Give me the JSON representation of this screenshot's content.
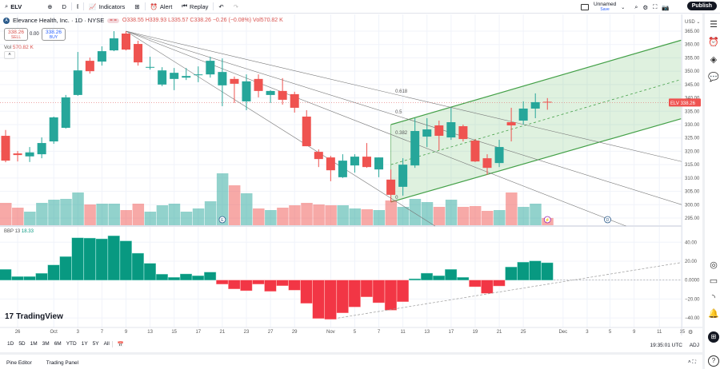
{
  "toolbar": {
    "symbol": "ELV",
    "interval": "D",
    "indicators": "Indicators",
    "alert": "Alert",
    "replay": "Replay",
    "layout_name": "Unnamed",
    "save": "Save",
    "publish": "Publish"
  },
  "legend": {
    "name": "Elevance Health, Inc. · 1D · NYSE",
    "open": "O338.55",
    "high": "H339.93",
    "low": "L335.57",
    "close": "C338.26",
    "change": "−0.26 (−0.08%)",
    "volume": "Vol570.82 K",
    "sell_price": "338.26",
    "sell": "SELL",
    "spread": "0.00",
    "buy_price": "338.26",
    "buy": "BUY",
    "vol_label": "Vol",
    "vol_value": "570.82 K"
  },
  "bbp": {
    "label": "BBP 13",
    "value": "18.33"
  },
  "brand": "TradingView",
  "price_axis": {
    "currency": "USD",
    "last_symbol": "ELV",
    "last_price": "338.26",
    "labels": [
      "365.00",
      "360.00",
      "355.00",
      "350.00",
      "345.00",
      "340.00",
      "335.00",
      "330.00",
      "325.00",
      "320.00",
      "315.00",
      "310.00",
      "305.00",
      "300.00",
      "295.00"
    ]
  },
  "bbp_axis": {
    "labels": [
      "40.00",
      "20.00",
      "0.0000",
      "−20.00",
      "−40.00"
    ]
  },
  "ranges": [
    "1D",
    "5D",
    "1M",
    "3M",
    "6M",
    "YTD",
    "1Y",
    "5Y",
    "All"
  ],
  "clock": "19:35:01 UTC",
  "adj": "ADJ",
  "bottom_tabs": [
    "Pine Editor",
    "Trading Panel"
  ],
  "chart_data": {
    "type": "candlestick",
    "colors": {
      "up": "#26a69a",
      "down": "#ef5350",
      "bbp_up": "#089981",
      "bbp_down": "#f23645",
      "channel": "#4caf50"
    },
    "ylim": [
      290,
      367
    ],
    "x_ticks": [
      {
        "label": "26",
        "bar": 1
      },
      {
        "label": "Oct",
        "bar": 4
      },
      {
        "label": "3",
        "bar": 6
      },
      {
        "label": "7",
        "bar": 8
      },
      {
        "label": "9",
        "bar": 10
      },
      {
        "label": "13",
        "bar": 12
      },
      {
        "label": "15",
        "bar": 14
      },
      {
        "label": "17",
        "bar": 16
      },
      {
        "label": "21",
        "bar": 18
      },
      {
        "label": "23",
        "bar": 20
      },
      {
        "label": "27",
        "bar": 22
      },
      {
        "label": "29",
        "bar": 24
      },
      {
        "label": "Nov",
        "bar": 27
      },
      {
        "label": "5",
        "bar": 29
      },
      {
        "label": "7",
        "bar": 31
      },
      {
        "label": "11",
        "bar": 33
      },
      {
        "label": "13",
        "bar": 35
      },
      {
        "label": "17",
        "bar": 37
      },
      {
        "label": "19",
        "bar": 39
      },
      {
        "label": "21",
        "bar": 41
      },
      {
        "label": "25",
        "bar": 43
      },
      {
        "label": "Dec",
        "bar": 46.3
      },
      {
        "label": "3",
        "bar": 48.3
      },
      {
        "label": "5",
        "bar": 50.2
      },
      {
        "label": "9",
        "bar": 52.2
      },
      {
        "label": "11",
        "bar": 54.3
      },
      {
        "label": "15",
        "bar": 56.2
      }
    ],
    "ohlc": [
      [
        325.8,
        328,
        315.9,
        316.5
      ],
      [
        319.2,
        320.1,
        316.2,
        318.6
      ],
      [
        318.1,
        321.6,
        316,
        319.6
      ],
      [
        318.9,
        325.2,
        317.4,
        323.1
      ],
      [
        323.7,
        333,
        322.8,
        332.7
      ],
      [
        328.8,
        341.1,
        328.5,
        340.2
      ],
      [
        341.1,
        357.2,
        340.8,
        350.3
      ],
      [
        353.9,
        355.1,
        349.1,
        350
      ],
      [
        353.6,
        359.3,
        352.1,
        357.5
      ],
      [
        357.8,
        365,
        357.5,
        362.3
      ],
      [
        364.1,
        365,
        357.8,
        358.1
      ],
      [
        360.2,
        361.4,
        352.1,
        353.3
      ],
      [
        351.4,
        355.4,
        350.6,
        351.6
      ],
      [
        345,
        351.5,
        344.4,
        350.3
      ],
      [
        347.1,
        351.2,
        342.9,
        349.4
      ],
      [
        347.6,
        351.2,
        346.7,
        348.2
      ],
      [
        348.5,
        351.8,
        345.9,
        348.8
      ],
      [
        348.8,
        355.4,
        347.6,
        353.9
      ],
      [
        344.7,
        354.8,
        336.9,
        349.7
      ],
      [
        347.1,
        348,
        338.1,
        345.3
      ],
      [
        338.7,
        348.8,
        335.4,
        346.2
      ],
      [
        347.1,
        348.8,
        340.2,
        342.6
      ],
      [
        341.1,
        342.9,
        338.1,
        342.6
      ],
      [
        342.6,
        347.4,
        337.5,
        339.3
      ],
      [
        341.4,
        342.3,
        334.5,
        336.3
      ],
      [
        333,
        335.4,
        321.9,
        321.9
      ],
      [
        319.8,
        320.7,
        314.1,
        317.1
      ],
      [
        317.7,
        318.3,
        308.8,
        312.9
      ],
      [
        310.3,
        318.9,
        310,
        316.5
      ],
      [
        314.7,
        318.9,
        312,
        318
      ],
      [
        318,
        323.1,
        313.8,
        314.1
      ],
      [
        313.2,
        317.7,
        310.3,
        317.7
      ],
      [
        309.4,
        313.2,
        301,
        303.7
      ],
      [
        306.7,
        317.4,
        303.4,
        315
      ],
      [
        314.7,
        332.4,
        313.8,
        327.6
      ],
      [
        325.5,
        332.4,
        321.6,
        328.2
      ],
      [
        329.7,
        331.5,
        320.4,
        325.8
      ],
      [
        325.2,
        336.3,
        324.3,
        330.9
      ],
      [
        329.4,
        330,
        323.7,
        324.6
      ],
      [
        324,
        324.6,
        316,
        316.2
      ],
      [
        317.4,
        318.9,
        311.2,
        313.8
      ],
      [
        315.6,
        324.3,
        314.1,
        321.6
      ],
      [
        330.9,
        336.3,
        323.7,
        329.7
      ],
      [
        331.5,
        338.7,
        330,
        336
      ],
      [
        336,
        341.7,
        332.4,
        338.4
      ],
      [
        338.55,
        339.93,
        335.57,
        338.26
      ]
    ],
    "volume_k": [
      1764,
      1386,
      1071,
      1764,
      2016,
      2079,
      2583,
      1638,
      1701,
      1701,
      1197,
      1701,
      1071,
      1575,
      1701,
      1071,
      1323,
      1890,
      4095,
      3150,
      2520,
      1323,
      1197,
      1386,
      1575,
      1764,
      1638,
      1575,
      1575,
      1323,
      1260,
      1197,
      1953,
      1449,
      2079,
      1827,
      1449,
      2016,
      1449,
      1512,
      1134,
      1197,
      2583,
      1449,
      1701,
      571
    ],
    "bbp": [
      11.3,
      3.7,
      3.7,
      7.1,
      16,
      24.8,
      44.7,
      44.4,
      43.6,
      46.8,
      41.4,
      28.4,
      17.7,
      6.2,
      2.9,
      6.5,
      4.6,
      8.4,
      -4.2,
      -9.3,
      -11.2,
      -4.2,
      -11.8,
      -5.9,
      -10.6,
      -24.5,
      -40.5,
      -41.4,
      -34.6,
      -28.4,
      -17.7,
      -23.9,
      -31.8,
      -22.8,
      1.4,
      7.3,
      4.6,
      11.3,
      2.9,
      -7,
      -14,
      -6.2,
      13.8,
      18.9,
      20.3,
      18.33
    ],
    "bbp_ylim": [
      -45,
      55
    ],
    "fib_fan": {
      "origin": {
        "bar": 10,
        "price": 365
      },
      "at_bar": 32.3,
      "levels": [
        {
          "label": "0.618",
          "price": 341.4
        },
        {
          "label": "0.5",
          "price": 333.6
        },
        {
          "label": "0.382",
          "price": 325.8
        },
        {
          "label": "0",
          "price": 301.6
        }
      ]
    },
    "regression_channel": {
      "from_bar": 32,
      "to_bar": 56.1,
      "upper": [
        330,
        361.6
      ],
      "middle": [
        315,
        346.9
      ],
      "lower": [
        301,
        332.2
      ]
    },
    "bbp_trendline": {
      "from": {
        "bar": 27.6,
        "value": -40.1
      },
      "to": {
        "bar": 56,
        "value": 18.3
      }
    },
    "markers": [
      {
        "bar": 18,
        "label": "E"
      },
      {
        "bar": 45,
        "label": "⚡"
      },
      {
        "bar": 50,
        "label": "D"
      }
    ]
  }
}
